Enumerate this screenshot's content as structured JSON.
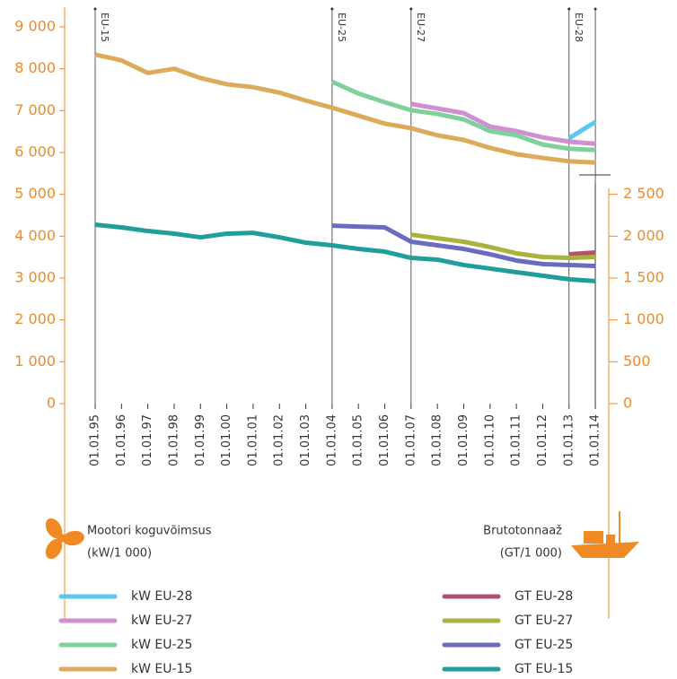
{
  "chart_data": {
    "type": "line",
    "categories": [
      "01.01.95",
      "01.01.96",
      "01.01.97",
      "01.01.98",
      "01.01.99",
      "01.01.00",
      "01.01.01",
      "01.01.02",
      "01.01.03",
      "01.01.04",
      "01.01.05",
      "01.01.06",
      "01.01.07",
      "01.01.08",
      "01.01.09",
      "01.01.10",
      "01.01.11",
      "01.01.12",
      "01.01.13",
      "01.01.14"
    ],
    "ylim": [
      0,
      9000
    ],
    "yticks": [
      0,
      {
        "value": 1000,
        "label": "1 000"
      },
      {
        "value": 2000,
        "label": "2 000"
      },
      {
        "value": 3000,
        "label": "3 000"
      },
      {
        "value": 4000,
        "label": "4 000"
      },
      {
        "value": 5000,
        "label": "5 000"
      },
      {
        "value": 6000,
        "label": "6 000"
      },
      {
        "value": 7000,
        "label": "7 000"
      },
      {
        "value": 8000,
        "label": "8 000"
      },
      {
        "value": 9000,
        "label": "9 000"
      }
    ],
    "y2lim": [
      0,
      4500
    ],
    "y2ticks": [
      0,
      500,
      {
        "value": 1000,
        "label": "1 000"
      },
      {
        "value": 1500,
        "label": "1 500"
      },
      {
        "value": 2000,
        "label": "2 000"
      },
      {
        "value": 2500,
        "label": "2 500"
      }
    ],
    "y_label": [
      "Mootori koguvõimsus",
      "(kW/1 000)"
    ],
    "y2_label": [
      "Brutotonnaaž",
      "(GT/1 000)"
    ],
    "annotations": [
      {
        "text": "EU-15",
        "category": 0
      },
      {
        "text": "EU-25",
        "category": 9
      },
      {
        "text": "EU-27",
        "category": 12
      },
      {
        "text": "EU-28",
        "category": 18
      }
    ],
    "series": [
      {
        "name": "kW EU-28",
        "color": "#5bc8ef",
        "values": [
          null,
          null,
          null,
          null,
          null,
          null,
          null,
          null,
          null,
          null,
          null,
          null,
          null,
          null,
          null,
          null,
          null,
          null,
          6340,
          6730
        ]
      },
      {
        "name": "kW EU-27",
        "color": "#d08fcf",
        "values": [
          null,
          null,
          null,
          null,
          null,
          null,
          null,
          null,
          null,
          null,
          null,
          null,
          7160,
          7050,
          6940,
          6620,
          6510,
          6360,
          6260,
          6210
        ]
      },
      {
        "name": "kW EU-25",
        "color": "#7fd19b",
        "values": [
          null,
          null,
          null,
          null,
          null,
          null,
          null,
          null,
          null,
          7690,
          7410,
          7200,
          7010,
          6920,
          6790,
          6510,
          6410,
          6190,
          6090,
          6060
        ]
      },
      {
        "name": "kW EU-15",
        "color": "#dcaa5a",
        "values": [
          8340,
          8200,
          7900,
          8000,
          7780,
          7630,
          7560,
          7430,
          7240,
          7070,
          6880,
          6690,
          6580,
          6410,
          6300,
          6110,
          5960,
          5870,
          5790,
          5760
        ]
      },
      {
        "name": "GT EU-28",
        "color": "#b5516e",
        "axis": "y2",
        "values": [
          null,
          null,
          null,
          null,
          null,
          null,
          null,
          null,
          null,
          null,
          null,
          null,
          null,
          null,
          null,
          null,
          null,
          null,
          1784,
          1805
        ]
      },
      {
        "name": "GT EU-27",
        "color": "#a8b23c",
        "axis": "y2",
        "values": [
          null,
          null,
          null,
          null,
          null,
          null,
          null,
          null,
          null,
          null,
          null,
          null,
          2019,
          1976,
          1934,
          1870,
          1795,
          1752,
          1741,
          1752
        ]
      },
      {
        "name": "GT EU-25",
        "color": "#6b6bbf",
        "axis": "y2",
        "values": [
          null,
          null,
          null,
          null,
          null,
          null,
          null,
          null,
          null,
          2126,
          2115,
          2105,
          1934,
          1891,
          1848,
          1784,
          1709,
          1667,
          1656,
          1645
        ]
      },
      {
        "name": "GT EU-15",
        "color": "#1f9e9a",
        "axis": "y2",
        "values": [
          2137,
          2105,
          2062,
          2030,
          1987,
          2030,
          2040,
          1987,
          1923,
          1891,
          1848,
          1816,
          1741,
          1720,
          1656,
          1613,
          1570,
          1528,
          1485,
          1464
        ]
      }
    ]
  }
}
